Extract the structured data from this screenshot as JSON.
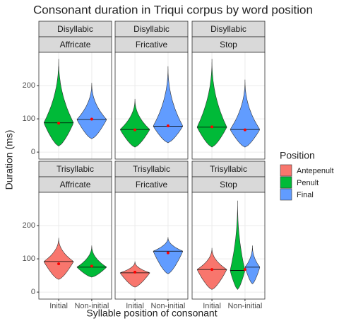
{
  "chart_data": {
    "type": "violin",
    "title": "Consonant duration in Triqui corpus by word position",
    "x_label": "Syllable position of consonant",
    "y_label": "Duration (ms)",
    "categories": [
      "Initial",
      "Non-initial"
    ],
    "ylim": [
      -21,
      300
    ],
    "yticks": [
      0,
      100,
      200
    ],
    "grid": true,
    "legend": {
      "title": "Position",
      "position": "right",
      "entries": [
        {
          "name": "Antepenult",
          "color": "#F8766D"
        },
        {
          "name": "Penult",
          "color": "#00BA38"
        },
        {
          "name": "Final",
          "color": "#619CFF"
        }
      ]
    },
    "mean_color": "#FF0000",
    "panels": [
      {
        "row_label": "Disyllabic",
        "col_label": "Affricate",
        "means": [
          87,
          99
        ],
        "violins": [
          {
            "category": 0,
            "group": 1,
            "min": 18,
            "max": 280,
            "median": 88
          },
          {
            "category": 1,
            "group": 2,
            "min": 40,
            "max": 208,
            "median": 98
          }
        ]
      },
      {
        "row_label": "Disyllabic",
        "col_label": "Fricative",
        "means": [
          67,
          79
        ],
        "violins": [
          {
            "category": 0,
            "group": 1,
            "min": 15,
            "max": 160,
            "median": 68
          },
          {
            "category": 1,
            "group": 2,
            "min": 28,
            "max": 258,
            "median": 78
          }
        ]
      },
      {
        "row_label": "Disyllabic",
        "col_label": "Stop",
        "means": [
          76,
          67
        ],
        "violins": [
          {
            "category": 0,
            "group": 1,
            "min": 15,
            "max": 280,
            "median": 75
          },
          {
            "category": 1,
            "group": 2,
            "min": 15,
            "max": 218,
            "median": 68
          }
        ]
      },
      {
        "row_label": "Trisyllabic",
        "col_label": "Affricate",
        "means": [
          85,
          78
        ],
        "violins": [
          {
            "category": 0,
            "group": 0,
            "min": 38,
            "max": 163,
            "median": 92
          },
          {
            "category": 1,
            "group": 1,
            "min": 45,
            "max": 140,
            "median": 75
          }
        ]
      },
      {
        "row_label": "Trisyllabic",
        "col_label": "Fricative",
        "means": [
          60,
          118
        ],
        "violins": [
          {
            "category": 0,
            "group": 0,
            "min": 15,
            "max": 92,
            "median": 58
          },
          {
            "category": 1,
            "group": 2,
            "min": 55,
            "max": 165,
            "median": 123
          }
        ]
      },
      {
        "row_label": "Trisyllabic",
        "col_label": "Stop",
        "means": [
          68,
          68
        ],
        "violins": [
          {
            "category": 0,
            "group": 0,
            "min": 8,
            "max": 133,
            "median": 68
          },
          {
            "category": 1,
            "group": 1,
            "min": 8,
            "max": 275,
            "median": 65
          },
          {
            "category": 1,
            "group": 2,
            "min": 25,
            "max": 140,
            "median": 75
          }
        ]
      }
    ]
  }
}
